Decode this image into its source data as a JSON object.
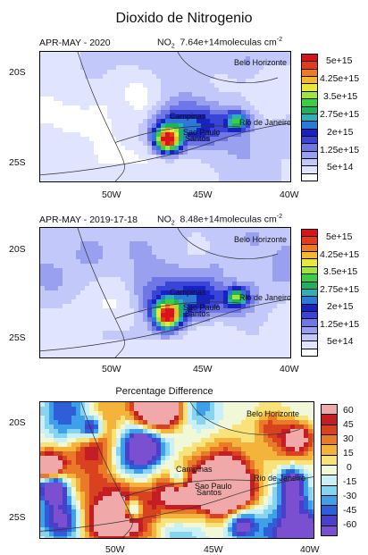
{
  "title": "Dioxido de Nitrogenio",
  "panels": [
    {
      "period": "APR-MAY - 2020",
      "species": "NO",
      "species_sub": "2",
      "mean_value": "7.64e+14",
      "unit": "moleculas cm",
      "unit_exp": "-2",
      "xticks": [
        "50W",
        "45W",
        "40W"
      ],
      "yticks": [
        "20S",
        "25S"
      ],
      "cities": [
        "Belo Horizonte",
        "Campinas",
        "Rio de Janeiro",
        "Sao Paulo",
        "Santos"
      ],
      "colorbar_labels": [
        "5e+15",
        "4.25e+15",
        "3.5e+15",
        "2.75e+15",
        "2e+15",
        "1.25e+15",
        "5e+14"
      ]
    },
    {
      "period": "APR-MAY - 2019-17-18",
      "species": "NO",
      "species_sub": "2",
      "mean_value": "8.48e+14",
      "unit": "moleculas cm",
      "unit_exp": "-2",
      "xticks": [
        "50W",
        "45W",
        "40W"
      ],
      "yticks": [
        "20S",
        "25S"
      ],
      "cities": [
        "Belo Horizonte",
        "Campinas",
        "Rio de Janeiro",
        "Sao Paulo",
        "Santos"
      ],
      "colorbar_labels": [
        "5e+15",
        "4.25e+15",
        "3.5e+15",
        "2.75e+15",
        "2e+15",
        "1.25e+15",
        "5e+14"
      ]
    },
    {
      "title": "Percentage Difference",
      "xticks": [
        "50W",
        "45W",
        "40W"
      ],
      "yticks": [
        "20S",
        "25S"
      ],
      "cities": [
        "Belo Horizonte",
        "Campinas",
        "Rio de Janeiro",
        "Sao Paulo",
        "Santos"
      ],
      "colorbar_labels": [
        "60",
        "45",
        "30",
        "15",
        "0",
        "-15",
        "-30",
        "-45",
        "-60"
      ]
    }
  ],
  "colors": {
    "no2_scale": [
      "#ffffff",
      "#e1e4ff",
      "#c3c8fa",
      "#9aa0f0",
      "#6f76e6",
      "#3a44d6",
      "#1822c4",
      "#2c7ad8",
      "#2fb0b8",
      "#20b060",
      "#36d040",
      "#9ee63c",
      "#e8e83a",
      "#f4b82a",
      "#f07a22",
      "#e63a1a",
      "#d8141a"
    ],
    "diff_scale": [
      "#7a4fd0",
      "#4a3fc8",
      "#2e5fd8",
      "#3ea0e8",
      "#86d4f0",
      "#c8f0f6",
      "#f0f8d8",
      "#f8e27a",
      "#f4b43c",
      "#e87a28",
      "#d8421e",
      "#c41e24",
      "#f0a8a8"
    ]
  }
}
